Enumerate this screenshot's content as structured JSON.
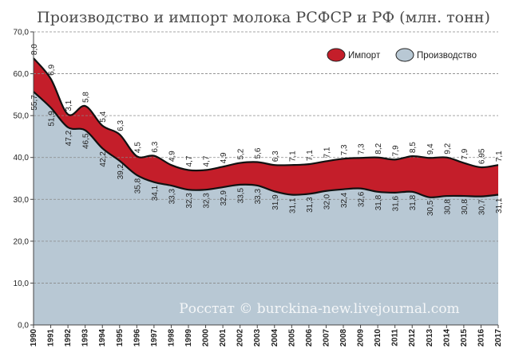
{
  "chart_data": {
    "type": "area",
    "title": "Производство и импорт молока РСФСР и РФ (млн. тонн)",
    "ylim": [
      0,
      70
    ],
    "yticks": [
      "0,0",
      "10,0",
      "20,0",
      "30,0",
      "40,0",
      "50,0",
      "60,0",
      "70,0"
    ],
    "ytick_values": [
      0,
      10,
      20,
      30,
      40,
      50,
      60,
      70
    ],
    "grid": true,
    "legend_position": "top-right",
    "categories": [
      "1990",
      "1991",
      "1992",
      "1993",
      "1994",
      "1995",
      "1996",
      "1997",
      "1998",
      "1999",
      "2000",
      "2001",
      "2002",
      "2003",
      "2004",
      "2005",
      "2006",
      "2007",
      "2008",
      "2009",
      "2010",
      "2011",
      "2012",
      "2013",
      "2014",
      "2015",
      "2016",
      "2017"
    ],
    "series": [
      {
        "name": "Производство",
        "color": "#b8c8d4",
        "values": [
          55.7,
          51.9,
          47.2,
          46.5,
          42.2,
          39.2,
          35.8,
          34.1,
          33.3,
          32.3,
          32.3,
          32.9,
          33.5,
          33.3,
          31.9,
          31.1,
          31.3,
          32.0,
          32.4,
          32.6,
          31.8,
          31.6,
          31.8,
          30.5,
          30.8,
          30.8,
          30.7,
          31.1
        ],
        "labels": [
          "55,7",
          "51,9",
          "47,2",
          "46,5",
          "42,2",
          "39,2",
          "35,8",
          "34,1",
          "33,3",
          "32,3",
          "32,3",
          "32,9",
          "33,5",
          "33,3",
          "31,9",
          "31,1",
          "31,3",
          "32,0",
          "32,4",
          "32,6",
          "31,8",
          "31,6",
          "31,8",
          "30,5",
          "30,8",
          "30,8",
          "30,7",
          "31,1"
        ]
      },
      {
        "name": "Импорт",
        "color": "#c41e2a",
        "values": [
          8.0,
          6.9,
          3.1,
          5.8,
          5.4,
          6.3,
          4.5,
          6.3,
          4.9,
          4.7,
          4.7,
          4.9,
          5.2,
          5.6,
          6.3,
          7.1,
          7.1,
          7.1,
          7.3,
          7.3,
          8.2,
          7.9,
          8.5,
          9.4,
          9.2,
          7.9,
          6.95,
          7.1
        ],
        "labels": [
          "8,0",
          "6,9",
          "3,1",
          "5,8",
          "5,4",
          "6,3",
          "4,5",
          "6,3",
          "4,9",
          "4,7",
          "4,7",
          "4,9",
          "5,2",
          "5,6",
          "6,3",
          "7,1",
          "7,1",
          "7,1",
          "7,3",
          "7,3",
          "8,2",
          "7,9",
          "8,5",
          "9,4",
          "9,2",
          "7,9",
          "6,95",
          "7,1"
        ]
      }
    ],
    "watermark": "Росстат © burckina-new.livejournal.com"
  }
}
